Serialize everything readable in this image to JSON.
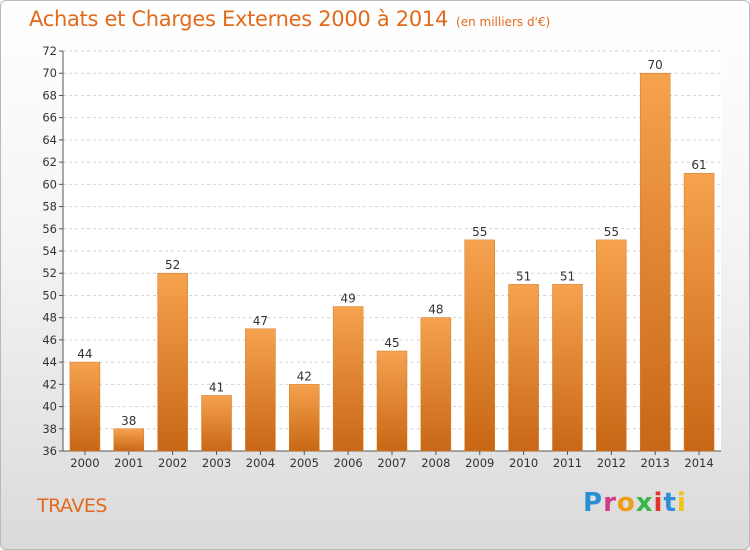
{
  "header": {
    "title": "Achats et Charges Externes 2000 à 2014",
    "subtitle": "(en milliers d'€)"
  },
  "commune": "TRAVES",
  "logo": {
    "text": "Proxiti"
  },
  "colors": {
    "accent": "#e26a1c",
    "bar_top": "#f6a24e",
    "bar_bottom": "#c86715"
  },
  "chart_data": {
    "type": "bar",
    "title": "Achats et Charges Externes 2000 à 2014",
    "subtitle": "(en milliers d'€)",
    "xlabel": "",
    "ylabel": "",
    "categories": [
      "2000",
      "2001",
      "2002",
      "2003",
      "2004",
      "2005",
      "2006",
      "2007",
      "2008",
      "2009",
      "2010",
      "2011",
      "2012",
      "2013",
      "2014"
    ],
    "values": [
      44,
      38,
      52,
      41,
      47,
      42,
      49,
      45,
      48,
      55,
      51,
      51,
      55,
      70,
      61
    ],
    "ylim": [
      36,
      72
    ],
    "yticks": [
      36,
      38,
      40,
      42,
      44,
      46,
      48,
      50,
      52,
      54,
      56,
      58,
      60,
      62,
      64,
      66,
      68,
      70,
      72
    ],
    "grid": true,
    "legend": "none"
  }
}
